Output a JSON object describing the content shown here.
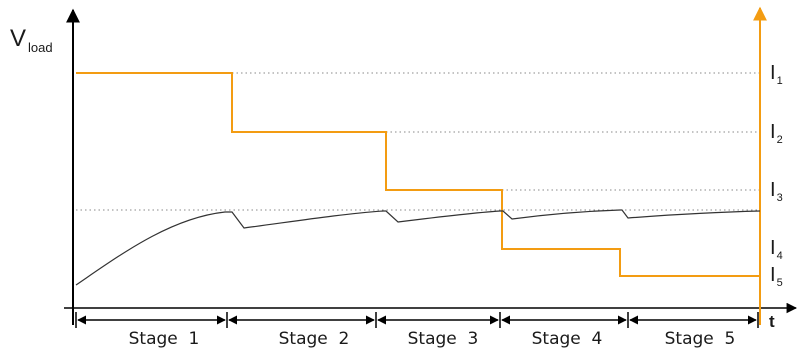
{
  "axes": {
    "y_label_main": "V",
    "y_label_sub": "load",
    "x_label": "t"
  },
  "current_levels": [
    {
      "main": "I",
      "sub": "1"
    },
    {
      "main": "I",
      "sub": "2"
    },
    {
      "main": "I",
      "sub": "3"
    },
    {
      "main": "I",
      "sub": "4"
    },
    {
      "main": "I",
      "sub": "5"
    }
  ],
  "stages": [
    "Stage  1",
    "Stage  2",
    "Stage  3",
    "Stage  4",
    "Stage  5"
  ],
  "colors": {
    "axis": "#000000",
    "current_profile": "#f39c12",
    "voltage_curve": "#333333",
    "dotted_guides": "#888888"
  }
}
